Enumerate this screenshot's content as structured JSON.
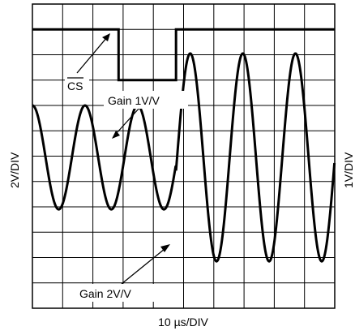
{
  "chart_data": {
    "type": "line",
    "title": "",
    "xlabel": "10 µs/DIV",
    "ylabel_left": "2V/DIV",
    "ylabel_right": "1V/DIV",
    "grid": true,
    "x_divisions": 10,
    "y_divisions": 12,
    "xlim": [
      0,
      100
    ],
    "ylim": [
      0,
      12
    ],
    "annotations": [
      {
        "text": "CS",
        "overline": true,
        "target": "cs"
      },
      {
        "text": "Gain 1V/V",
        "target": "sine"
      },
      {
        "text": "Gain 2V/V",
        "target": "sine"
      }
    ],
    "series": [
      {
        "id": "cs",
        "kind": "digital",
        "high_div": 11.0,
        "low_div": 9.0,
        "low_start_us": 28.5,
        "low_end_us": 47.5
      },
      {
        "id": "sine",
        "kind": "sine",
        "period_us": 17.4,
        "phase_start_us": 0,
        "segments": [
          {
            "label": "Gain 1V/V",
            "start_us": 0,
            "end_us": 47.5,
            "center_div": 5.95,
            "amplitude_div": 2.05
          },
          {
            "label": "Gain 2V/V",
            "start_us": 47.5,
            "end_us": 100,
            "center_div": 5.95,
            "amplitude_div": 4.1
          }
        ]
      }
    ]
  }
}
